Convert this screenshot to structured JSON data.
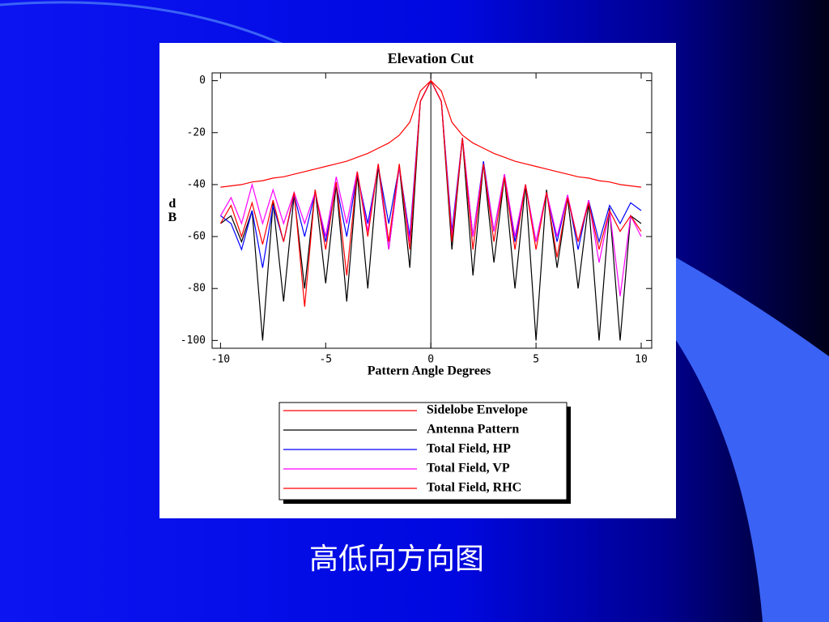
{
  "chart_data": {
    "type": "line",
    "title": "Elevation Cut",
    "x_label": "Pattern Angle Degrees",
    "y_label": "dB",
    "x": [
      -10,
      -9.5,
      -9,
      -8.5,
      -8,
      -7.5,
      -7,
      -6.5,
      -6,
      -5.5,
      -5,
      -4.5,
      -4,
      -3.5,
      -3,
      -2.5,
      -2,
      -1.5,
      -1,
      -0.5,
      0,
      0.5,
      1,
      1.5,
      2,
      2.5,
      3,
      3.5,
      4,
      4.5,
      5,
      5.5,
      6,
      6.5,
      7,
      7.5,
      8,
      8.5,
      9,
      9.5,
      10
    ],
    "series": [
      {
        "name": "Sidelobe Envelope",
        "color": "#ff0000",
        "values": [
          -41,
          -40.5,
          -40,
          -39,
          -38.5,
          -37.5,
          -37,
          -36,
          -35,
          -34,
          -33,
          -32,
          -31,
          -29.5,
          -28,
          -26,
          -24,
          -21,
          -16,
          -4,
          0,
          -4,
          -16,
          -21,
          -24,
          -26,
          -28,
          -29.5,
          -31,
          -32,
          -33,
          -34,
          -35,
          -36,
          -37,
          -37.5,
          -38.5,
          -39,
          -40,
          -40.5,
          -41
        ]
      },
      {
        "name": "Antenna Pattern",
        "color": "#000000",
        "values": [
          -55,
          -52,
          -62,
          -50,
          -100,
          -47,
          -85,
          -44,
          -80,
          -42,
          -78,
          -40,
          -85,
          -36,
          -80,
          -33,
          -65,
          -33,
          -72,
          -8,
          0,
          -8,
          -65,
          -22,
          -75,
          -32,
          -70,
          -37,
          -80,
          -40,
          -100,
          -42,
          -72,
          -45,
          -80,
          -47,
          -100,
          -49,
          -100,
          -52,
          -55
        ]
      },
      {
        "name": "Total Field, HP",
        "color": "#0000ff",
        "values": [
          -52,
          -55,
          -65,
          -50,
          -72,
          -48,
          -62,
          -44,
          -60,
          -43,
          -62,
          -40,
          -60,
          -36,
          -55,
          -33,
          -55,
          -33,
          -60,
          -8,
          0,
          -8,
          -58,
          -22,
          -60,
          -31,
          -58,
          -36,
          -62,
          -40,
          -62,
          -43,
          -62,
          -44,
          -65,
          -46,
          -62,
          -48,
          -55,
          -47,
          -50
        ]
      },
      {
        "name": "Total Field, VP",
        "color": "#ff00ff",
        "values": [
          -52,
          -45,
          -55,
          -40,
          -55,
          -42,
          -55,
          -43,
          -55,
          -43,
          -60,
          -37,
          -55,
          -35,
          -58,
          -32,
          -65,
          -33,
          -62,
          -8,
          0,
          -8,
          -60,
          -22,
          -60,
          -32,
          -58,
          -36,
          -60,
          -40,
          -62,
          -43,
          -60,
          -44,
          -62,
          -46,
          -70,
          -50,
          -83,
          -52,
          -60
        ]
      },
      {
        "name": "Total Field, RHC",
        "color": "#ff0000",
        "values": [
          -55,
          -48,
          -60,
          -47,
          -63,
          -46,
          -62,
          -43,
          -87,
          -42,
          -65,
          -39,
          -75,
          -35,
          -60,
          -32,
          -62,
          -32,
          -65,
          -8,
          0,
          -8,
          -62,
          -22,
          -65,
          -32,
          -62,
          -37,
          -65,
          -40,
          -65,
          -43,
          -68,
          -45,
          -62,
          -47,
          -65,
          -50,
          -58,
          -52,
          -58
        ]
      }
    ],
    "xlim": [
      -10.4,
      10.5
    ],
    "ylim": [
      -103,
      3
    ],
    "xticks": [
      -10,
      -5,
      0,
      5,
      10
    ],
    "yticks": [
      -100,
      -80,
      -60,
      -40,
      -20,
      0
    ],
    "legend": "bottom"
  },
  "caption": "高低向方向图"
}
